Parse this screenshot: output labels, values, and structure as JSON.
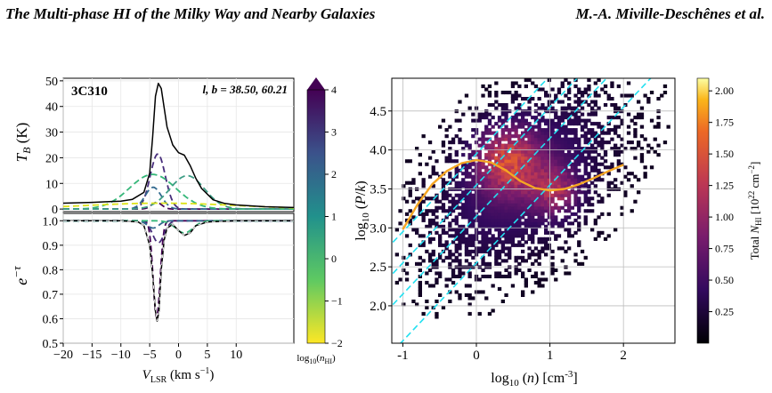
{
  "header": {
    "left": "The Multi-phase HI of the Milky Way and Nearby Galaxies",
    "right": "M.-A. Miville-Deschênes et al."
  },
  "chart_data": [
    {
      "type": "line",
      "panel": "emission",
      "source_name": "3C310",
      "coords_label": "l, b = 38.50, 60.21",
      "ylabel": "T_B (K)",
      "xlim": [
        -20,
        20
      ],
      "ylim": [
        -1,
        51
      ],
      "yticks": [
        "0",
        "10",
        "20",
        "30",
        "40",
        "50"
      ],
      "grid": true,
      "total": {
        "x": [
          -20,
          -15,
          -10,
          -8,
          -6,
          -5,
          -4.5,
          -4,
          -3.5,
          -3,
          -2,
          -1,
          0,
          0.5,
          1,
          2,
          3,
          4,
          6,
          8,
          10,
          15,
          20
        ],
        "y": [
          2.3,
          2.6,
          3.1,
          3.8,
          6.5,
          14,
          28,
          44,
          49,
          47,
          32,
          25,
          22,
          21.5,
          21,
          17,
          12,
          8,
          3.6,
          2.2,
          1.6,
          0.9,
          0.6
        ]
      },
      "components": [
        {
          "log_n": 3.6,
          "color": "#440154",
          "center": -3.8,
          "amp": 2.6,
          "sigma": 0.9
        },
        {
          "log_n": 3.2,
          "color": "#472d7b",
          "center": -3.6,
          "amp": 21.5,
          "sigma": 1.3
        },
        {
          "log_n": 2.2,
          "color": "#31688e",
          "center": -4.4,
          "amp": 8.5,
          "sigma": 1.4
        },
        {
          "log_n": 0.8,
          "color": "#35b779",
          "center": -4.5,
          "amp": 13.5,
          "sigma": 4.0
        },
        {
          "log_n": 0.5,
          "color": "#3e9d85",
          "center": 1.5,
          "amp": 13.0,
          "sigma": 3.0
        },
        {
          "log_n": -1.2,
          "color": "#dde318",
          "center": -3.0,
          "amp": 2.3,
          "sigma": 13.0
        }
      ]
    },
    {
      "type": "line",
      "panel": "absorption",
      "ylabel": "e^{-τ}",
      "xlabel": "V_LSR (km s^{-1})",
      "xlim": [
        -20,
        20
      ],
      "ylim": [
        0.5,
        1.03
      ],
      "xticks": [
        "−20",
        "−15",
        "−10",
        "−5",
        "0",
        "5",
        "10"
      ],
      "yticks": [
        "0.5",
        "0.6",
        "0.7",
        "0.8",
        "0.9",
        "1.0"
      ],
      "grid": true,
      "total": {
        "x": [
          -20,
          -10,
          -7,
          -6,
          -5,
          -4.5,
          -4,
          -3.7,
          -3.4,
          -3,
          -2.5,
          -2,
          -1,
          0,
          1,
          2,
          3,
          5,
          10,
          20
        ],
        "y": [
          1.0,
          1.0,
          0.995,
          0.98,
          0.9,
          0.78,
          0.63,
          0.59,
          0.63,
          0.8,
          0.92,
          0.97,
          0.985,
          0.96,
          0.94,
          0.95,
          0.98,
          0.995,
          1.0,
          1.0
        ]
      },
      "components": [
        {
          "log_n": 3.6,
          "color": "#440154",
          "center": -3.8,
          "depth": 0.4,
          "sigma": 0.6
        },
        {
          "log_n": 3.2,
          "color": "#472d7b",
          "center": -3.5,
          "depth": 0.09,
          "sigma": 1.0
        },
        {
          "log_n": 2.2,
          "color": "#31688e",
          "center": -4.4,
          "depth": 0.03,
          "sigma": 1.0
        },
        {
          "log_n": 0.8,
          "color": "#35b779",
          "center": 1.0,
          "depth": 0.05,
          "sigma": 1.5
        }
      ]
    },
    {
      "type": "colorbar",
      "label": "log_10 (n_HI)",
      "range": [
        -2,
        4
      ],
      "ticks": [
        "−2",
        "−1",
        "0",
        "1",
        "2",
        "3",
        "4"
      ],
      "colormap": "viridis_r"
    },
    {
      "type": "heatmap",
      "xlabel": "log_10 (n) [cm^-3]",
      "ylabel": "log_10 (P/k)",
      "xlim": [
        -1.15,
        2.7
      ],
      "ylim": [
        1.52,
        4.92
      ],
      "xticks": [
        "-1",
        "0",
        "1",
        "2"
      ],
      "yticks": [
        "2.0",
        "2.5",
        "3.0",
        "3.5",
        "4.0",
        "4.5"
      ],
      "grid": true,
      "isothermal_lines_intercepts": [
        2.55,
        3.15,
        3.55,
        3.95
      ],
      "equilibrium_curve": {
        "x": [
          -1.0,
          -0.8,
          -0.6,
          -0.4,
          -0.2,
          0.0,
          0.2,
          0.4,
          0.6,
          0.8,
          1.0,
          1.2,
          1.4,
          1.6,
          1.8,
          2.0
        ],
        "y": [
          2.98,
          3.3,
          3.56,
          3.73,
          3.83,
          3.87,
          3.84,
          3.74,
          3.6,
          3.51,
          3.48,
          3.5,
          3.56,
          3.64,
          3.73,
          3.81
        ]
      },
      "colorbar": {
        "label": "Total N_HI [10^22 cm^-2]",
        "range": [
          0.0,
          2.1
        ],
        "ticks": [
          "0.25",
          "0.50",
          "0.75",
          "1.00",
          "1.25",
          "1.50",
          "1.75",
          "2.00"
        ]
      }
    }
  ]
}
